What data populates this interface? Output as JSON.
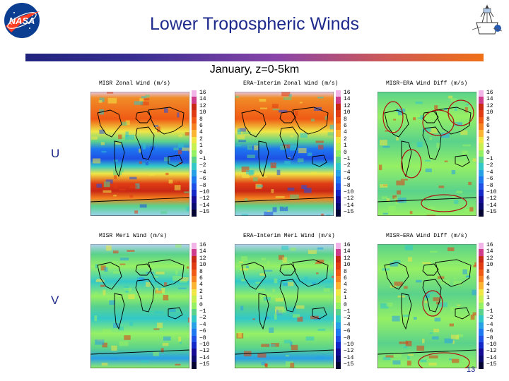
{
  "title": "Lower Tropospheric Winds",
  "subtitle": "January, z=0-5km",
  "logos": {
    "left": "nasa-logo",
    "right": "misr-logo"
  },
  "row_labels": {
    "u": "U",
    "v": "V"
  },
  "colorbar_labels": [
    "16",
    "14",
    "12",
    "10",
    "8",
    "6",
    "4",
    "2",
    "1",
    "0",
    "−1",
    "−2",
    "−4",
    "−6",
    "−8",
    "−10",
    "−12",
    "−14",
    "−15"
  ],
  "colorbar_colors": [
    "#f2b4e8",
    "#d03c8c",
    "#c82814",
    "#e03c14",
    "#f05a14",
    "#f5821e",
    "#fab432",
    "#f0e646",
    "#c8f050",
    "#96f064",
    "#5ad28c",
    "#32c8c8",
    "#28a0e6",
    "#1e78f0",
    "#1e50e6",
    "#1428c8",
    "#140a96",
    "#0a0a6e",
    "#050532"
  ],
  "panels": [
    {
      "id": "misr-zonal",
      "title": "MISR Zonal Wind (m/s)",
      "style": "zonal"
    },
    {
      "id": "era-zonal",
      "title": "ERA−Interim Zonal Wind (m/s)",
      "style": "zonal"
    },
    {
      "id": "diff-zonal",
      "title": "MISR−ERA Wind Diff (m/s)",
      "style": "diff"
    },
    {
      "id": "misr-meri",
      "title": "MISR Meri Wind (m/s)",
      "style": "meri"
    },
    {
      "id": "era-meri",
      "title": "ERA−Interim Meri Wind (m/s)",
      "style": "meri"
    },
    {
      "id": "diff-meri",
      "title": "MISR−ERA Wind Diff (m/s)",
      "style": "diff"
    }
  ],
  "page_number": "13"
}
